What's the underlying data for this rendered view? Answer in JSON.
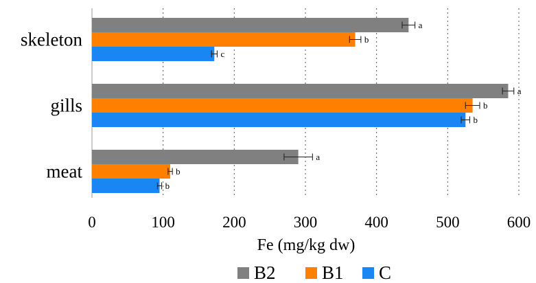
{
  "chart_data": {
    "type": "bar",
    "orientation": "horizontal",
    "categories": [
      "skeleton",
      "gills",
      "meat"
    ],
    "series": [
      {
        "name": "B2",
        "color": "#808080",
        "values": [
          445,
          585,
          290
        ],
        "errors": [
          9,
          8,
          20
        ],
        "labels": [
          "a",
          "a",
          "a"
        ]
      },
      {
        "name": "B1",
        "color": "#ff8000",
        "values": [
          370,
          535,
          110
        ],
        "errors": [
          8,
          10,
          3
        ],
        "labels": [
          "b",
          "b",
          "b"
        ]
      },
      {
        "name": "C",
        "color": "#1a86f3",
        "values": [
          172,
          525,
          95
        ],
        "errors": [
          4,
          6,
          3
        ],
        "labels": [
          "c",
          "b",
          "b"
        ]
      }
    ],
    "xlabel": "Fe (mg/kg dw)",
    "xlim": [
      0,
      600
    ],
    "xticks": [
      0,
      100,
      200,
      300,
      400,
      500,
      600
    ],
    "grid": "vertical dotted",
    "legend": "bottom"
  }
}
